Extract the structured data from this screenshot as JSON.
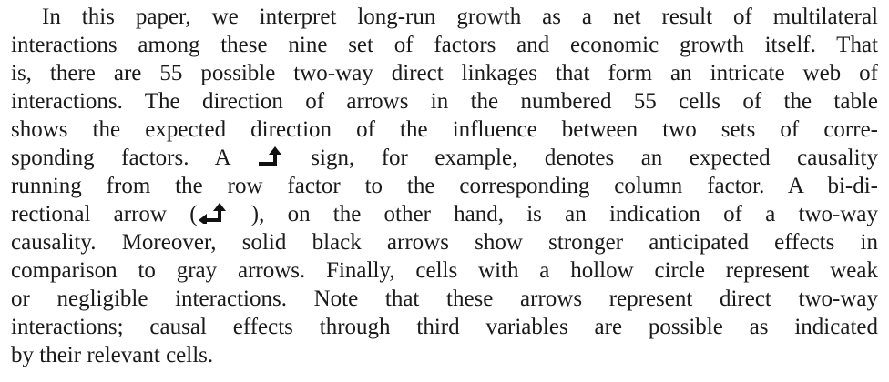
{
  "paragraph": {
    "lines": [
      "In this paper, we interpret long-run growth as a net result of multilateral",
      "interactions among these nine set of factors and economic growth itself. That",
      "is, there are 55 possible two-way direct linkages that form an intricate web of",
      "interactions. The direction of arrows in the numbered 55 cells of the table",
      "shows the expected direction of the influence between two sets of corre-",
      [
        "sponding factors. A",
        "sign, for example, denotes an expected causality"
      ],
      "running from the row factor to the corresponding column factor. A bi-di-",
      [
        "rectional arrow (",
        "), on the other hand, is an indication of a two-way"
      ],
      "causality. Moreover, solid black arrows show stronger anticipated effects in",
      "comparison to gray arrows. Finally, cells with a hollow circle represent weak",
      "or negligible interactions. Note that these arrows represent direct two-way",
      "interactions; causal effects through third variables are possible as indicated",
      "by their relevant cells."
    ]
  }
}
